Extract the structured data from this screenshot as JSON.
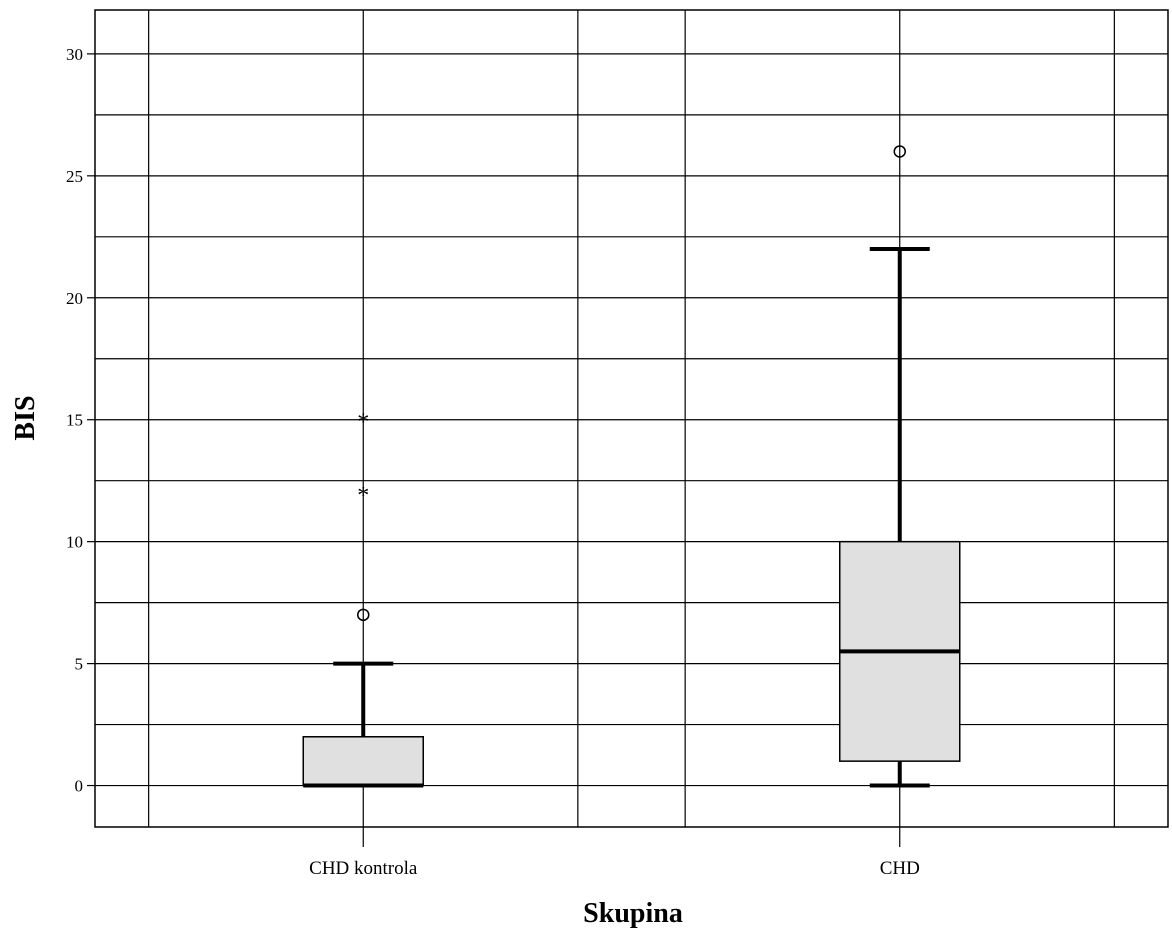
{
  "chart_data": {
    "type": "boxplot",
    "title": "",
    "xlabel": "Skupina",
    "ylabel": "BIS",
    "ylim": [
      -1.7,
      31.8
    ],
    "yticks": [
      0,
      5,
      10,
      15,
      20,
      25,
      30
    ],
    "grid": true,
    "legend": "none",
    "box_fill": "#e0e0e0",
    "categories": [
      "CHD kontrola",
      "CHD"
    ],
    "boxes": [
      {
        "category": "CHD kontrola",
        "whisker_low": 0,
        "q1": 0,
        "median": 0,
        "q3": 2,
        "whisker_high": 5,
        "outliers": [
          7
        ],
        "extremes": [
          12,
          15
        ]
      },
      {
        "category": "CHD",
        "whisker_low": 0,
        "q1": 1,
        "median": 5.5,
        "q3": 10,
        "whisker_high": 22,
        "outliers": [
          26
        ],
        "extremes": []
      }
    ]
  }
}
